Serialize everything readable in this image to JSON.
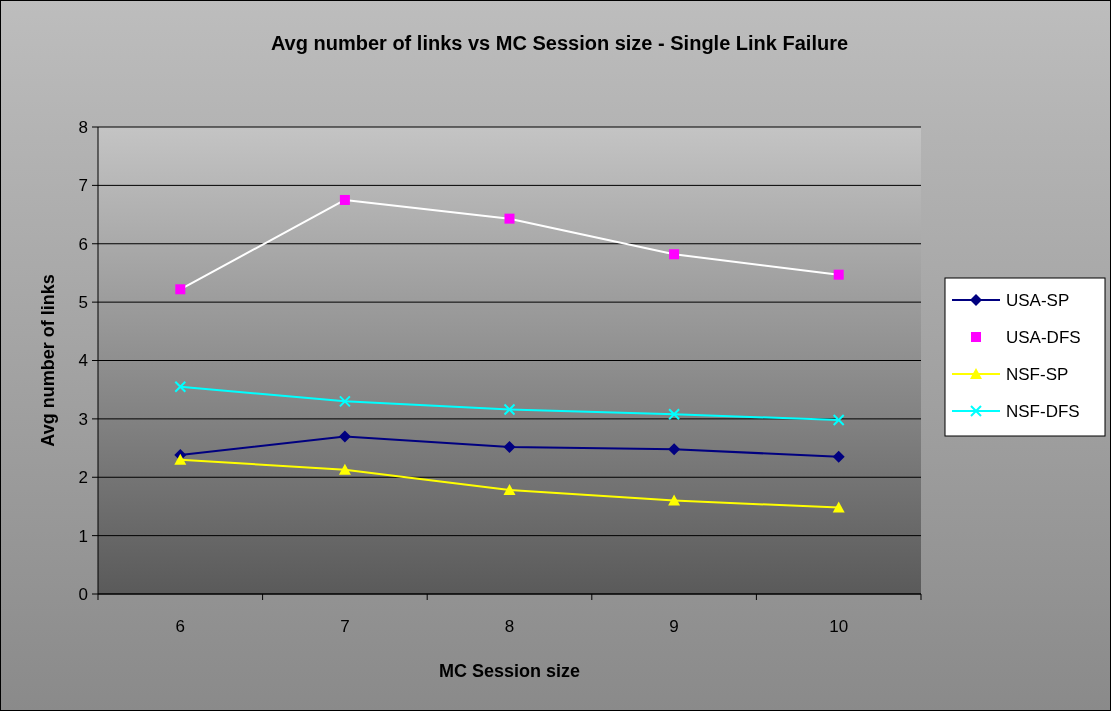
{
  "chart_data": {
    "type": "line",
    "title": "Avg number of links vs MC Session size - Single Link Failure",
    "xlabel": "MC Session size",
    "ylabel": "Avg number of links",
    "categories": [
      "6",
      "7",
      "8",
      "9",
      "10"
    ],
    "series": [
      {
        "name": "USA-SP",
        "color": "#000080",
        "marker": "diamond",
        "values": [
          2.38,
          2.7,
          2.52,
          2.48,
          2.35
        ]
      },
      {
        "name": "USA-DFS",
        "color": "#ff00ff",
        "marker": "square",
        "line_style": "solid",
        "values": [
          5.22,
          6.75,
          6.43,
          5.82,
          5.47
        ]
      },
      {
        "name": "NSF-SP",
        "color": "#ffff00",
        "marker": "triangle",
        "values": [
          2.3,
          2.13,
          1.78,
          1.6,
          1.48
        ]
      },
      {
        "name": "NSF-DFS",
        "color": "#00ffff",
        "marker": "cross",
        "values": [
          3.55,
          3.3,
          3.16,
          3.08,
          2.98
        ]
      }
    ],
    "ylim": [
      0,
      8
    ],
    "yticks": [
      0,
      1,
      2,
      3,
      4,
      5,
      6,
      7,
      8
    ],
    "grid": "y",
    "legend": "right"
  }
}
